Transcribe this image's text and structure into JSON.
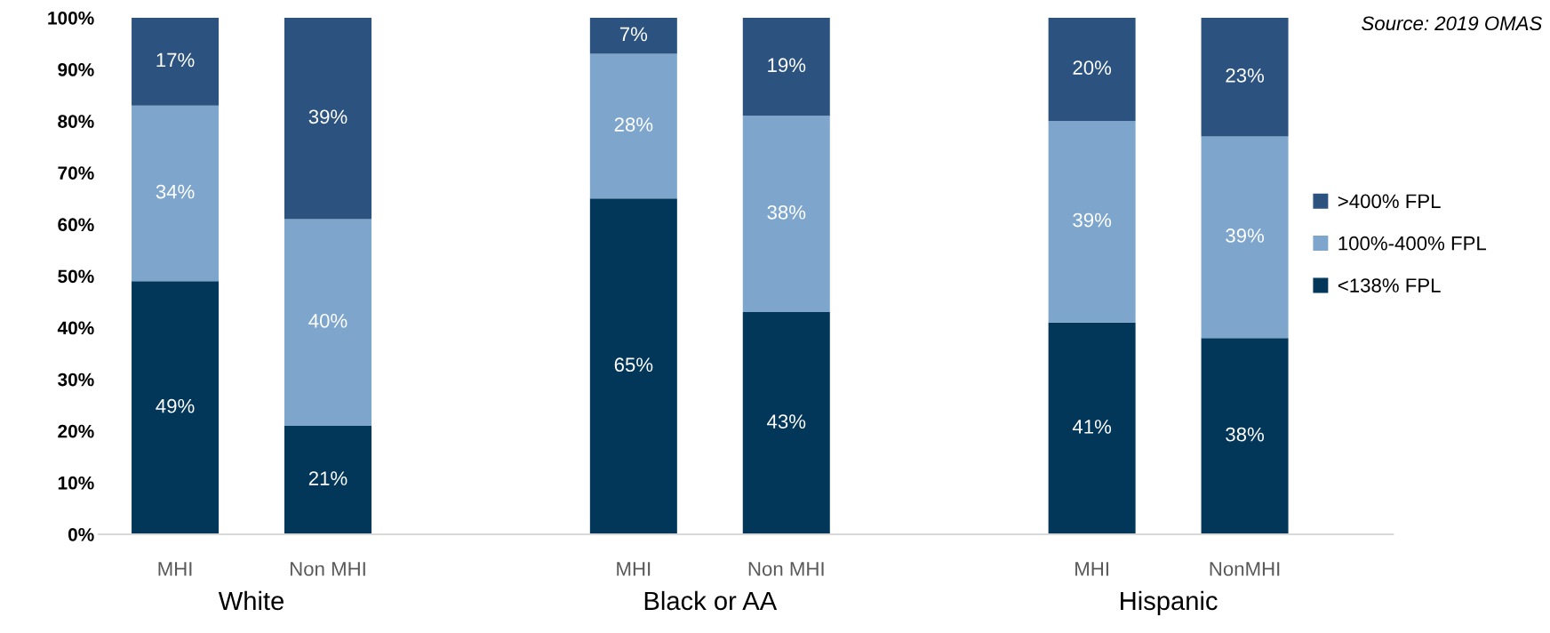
{
  "chart_data": {
    "type": "bar",
    "stacked": true,
    "categories": [
      "MHI",
      "Non MHI",
      null,
      "MHI",
      "Non MHI",
      null,
      "MHI",
      "NonMHI"
    ],
    "series": [
      {
        "name": "<138% FPL",
        "color": "#03375a",
        "values": [
          49,
          21,
          null,
          65,
          43,
          null,
          41,
          38
        ],
        "value_labels": [
          "49%",
          "21%",
          null,
          "65%",
          "43%",
          null,
          "41%",
          "38%"
        ]
      },
      {
        "name": "100%-400% FPL",
        "color": "#7ea6cd",
        "values": [
          34,
          40,
          null,
          28,
          38,
          null,
          39,
          39
        ],
        "value_labels": [
          "34%",
          "40%",
          null,
          "28%",
          "38%",
          null,
          "39%",
          "39%"
        ]
      },
      {
        "name": ">400% FPL",
        "color": "#2c5380",
        "values": [
          17,
          39,
          null,
          7,
          19,
          null,
          20,
          23
        ],
        "value_labels": [
          "17%",
          "39%",
          null,
          "7%",
          "19%",
          null,
          "20%",
          "23%"
        ]
      }
    ],
    "ylim": [
      0,
      100
    ],
    "yticks": [
      {
        "value": 0,
        "label": "0%"
      },
      {
        "value": 10,
        "label": "10%"
      },
      {
        "value": 20,
        "label": "20%"
      },
      {
        "value": 30,
        "label": "30%"
      },
      {
        "value": 40,
        "label": "40%"
      },
      {
        "value": 50,
        "label": "50%"
      },
      {
        "value": 60,
        "label": "60%"
      },
      {
        "value": 70,
        "label": "70%"
      },
      {
        "value": 80,
        "label": "80%"
      },
      {
        "value": 90,
        "label": "90%"
      },
      {
        "value": 100,
        "label": "100%"
      }
    ],
    "annotations": [
      "Source: 2019 OMAS",
      "White",
      "Black or AA",
      "Hispanic"
    ],
    "legend": "right",
    "grid": false
  }
}
